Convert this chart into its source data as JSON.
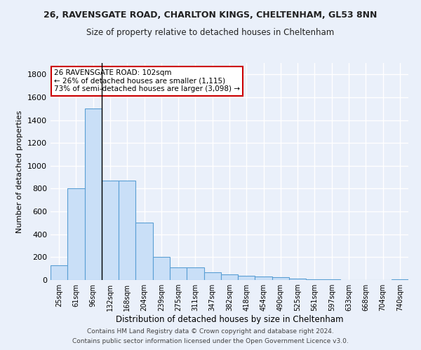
{
  "title": "26, RAVENSGATE ROAD, CHARLTON KINGS, CHELTENHAM, GL53 8NN",
  "subtitle": "Size of property relative to detached houses in Cheltenham",
  "xlabel": "Distribution of detached houses by size in Cheltenham",
  "ylabel": "Number of detached properties",
  "categories": [
    "25sqm",
    "61sqm",
    "96sqm",
    "132sqm",
    "168sqm",
    "204sqm",
    "239sqm",
    "275sqm",
    "311sqm",
    "347sqm",
    "382sqm",
    "418sqm",
    "454sqm",
    "490sqm",
    "525sqm",
    "561sqm",
    "597sqm",
    "633sqm",
    "668sqm",
    "704sqm",
    "740sqm"
  ],
  "values": [
    130,
    800,
    1500,
    870,
    870,
    500,
    205,
    110,
    110,
    70,
    50,
    35,
    30,
    25,
    10,
    8,
    5,
    3,
    2,
    2,
    5
  ],
  "bar_color": "#c9dff7",
  "bar_edge_color": "#5a9fd4",
  "highlight_bar_index": 2,
  "annotation_text": "26 RAVENSGATE ROAD: 102sqm\n← 26% of detached houses are smaller (1,115)\n73% of semi-detached houses are larger (3,098) →",
  "annotation_box_color": "#ffffff",
  "annotation_box_edge": "#cc0000",
  "ylim": [
    0,
    1900
  ],
  "yticks": [
    0,
    200,
    400,
    600,
    800,
    1000,
    1200,
    1400,
    1600,
    1800
  ],
  "bg_color": "#eaf0fa",
  "grid_color": "#ffffff",
  "footer1": "Contains HM Land Registry data © Crown copyright and database right 2024.",
  "footer2": "Contains public sector information licensed under the Open Government Licence v3.0."
}
